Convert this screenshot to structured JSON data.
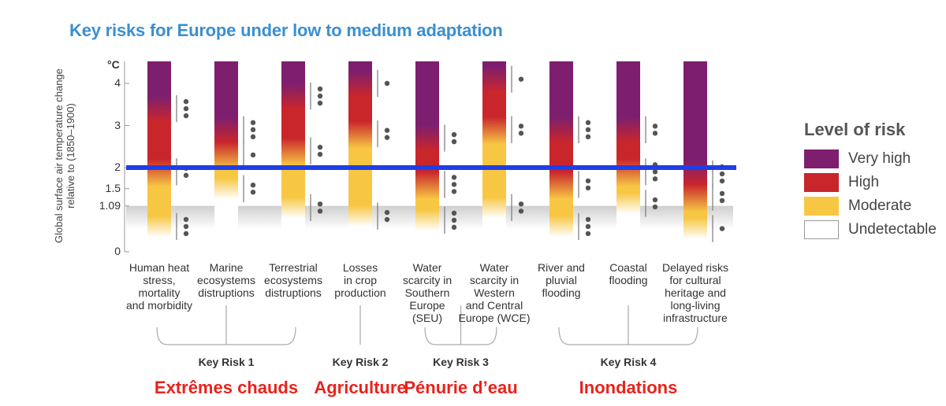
{
  "title": "Key risks for Europe under low to medium adaptation",
  "chart_data": {
    "type": "bar",
    "y_axis_label_lines": [
      "Global surface air temperature change",
      "relative to (1850–1900)"
    ],
    "y_unit": "°C",
    "y_ticks": [
      "4",
      "3",
      "2",
      "1.5",
      "1.09",
      "0"
    ],
    "y_tick_values": [
      4,
      3,
      2,
      1.5,
      1.09,
      0
    ],
    "ylim": [
      0,
      4.3
    ],
    "observed_warming_band": [
      0.95,
      1.09
    ],
    "reference_line": 2.0,
    "legend_title": "Level of risk",
    "levels": [
      {
        "name": "Very high",
        "color": "#7d1f6e"
      },
      {
        "name": "High",
        "color": "#c9262c"
      },
      {
        "name": "Moderate",
        "color": "#f7c744"
      },
      {
        "name": "Undetectable",
        "color": "#ffffff"
      }
    ],
    "categories": [
      "Human heat\nstress,\nmortality\nand morbidity",
      "Marine\necosystems\ndistruptions",
      "Terrestrial\necosystems\ndistruptions",
      "Losses\nin crop\nproduction",
      "Water\nscarcity in\nSouthern\nEurope\n(SEU)",
      "Water\nscarcity in\nWestern\nand Central\nEurope (WCE)",
      "River and\npluvial\nflooding",
      "Coastal\nflooding",
      "Delayed risks\nfor cultural\nheritage and\nlong-living\ninfrastructure"
    ],
    "transitions": [
      {
        "to_moderate": 0.6,
        "to_high": 1.9,
        "to_very_high": 3.4,
        "confidence": [
          3,
          2,
          3
        ]
      },
      {
        "to_moderate": 1.5,
        "to_high": 2.3,
        "to_very_high": 2.9,
        "confidence": [
          2,
          1,
          3
        ]
      },
      {
        "to_moderate": 1.05,
        "to_high": 2.4,
        "to_very_high": 3.7,
        "confidence": [
          2,
          2,
          3
        ]
      },
      {
        "to_moderate": 0.85,
        "to_high": 2.8,
        "to_very_high": 4.0,
        "confidence": [
          2,
          2,
          1
        ]
      },
      {
        "to_moderate": 0.75,
        "to_high": 1.6,
        "to_very_high": 2.7,
        "confidence": [
          3,
          3,
          2
        ]
      },
      {
        "to_moderate": 1.05,
        "to_high": 2.9,
        "to_very_high": 4.1,
        "confidence": [
          2,
          2,
          1
        ]
      },
      {
        "to_moderate": 0.6,
        "to_high": 1.6,
        "to_very_high": 2.9,
        "confidence": [
          3,
          2,
          3
        ]
      },
      {
        "to_moderate": 1.15,
        "to_high": 1.9,
        "to_very_high": 2.9,
        "confidence": [
          2,
          3,
          2
        ]
      },
      {
        "to_moderate": 0.55,
        "to_high": 1.3,
        "to_very_high": 1.85,
        "confidence": [
          1,
          2,
          3
        ]
      }
    ],
    "key_risks": [
      {
        "label": "Key Risk 1",
        "french": "Extrêmes chauds",
        "from": 0,
        "to": 2
      },
      {
        "label": "Key Risk 2",
        "french": "Agriculture",
        "from": 3,
        "to": 3
      },
      {
        "label": "Key Risk 3",
        "french": "Pénurie d’eau",
        "from": 4,
        "to": 5
      },
      {
        "label": "Key Risk 4",
        "french": "Inondations",
        "from": 6,
        "to": 8
      }
    ]
  }
}
